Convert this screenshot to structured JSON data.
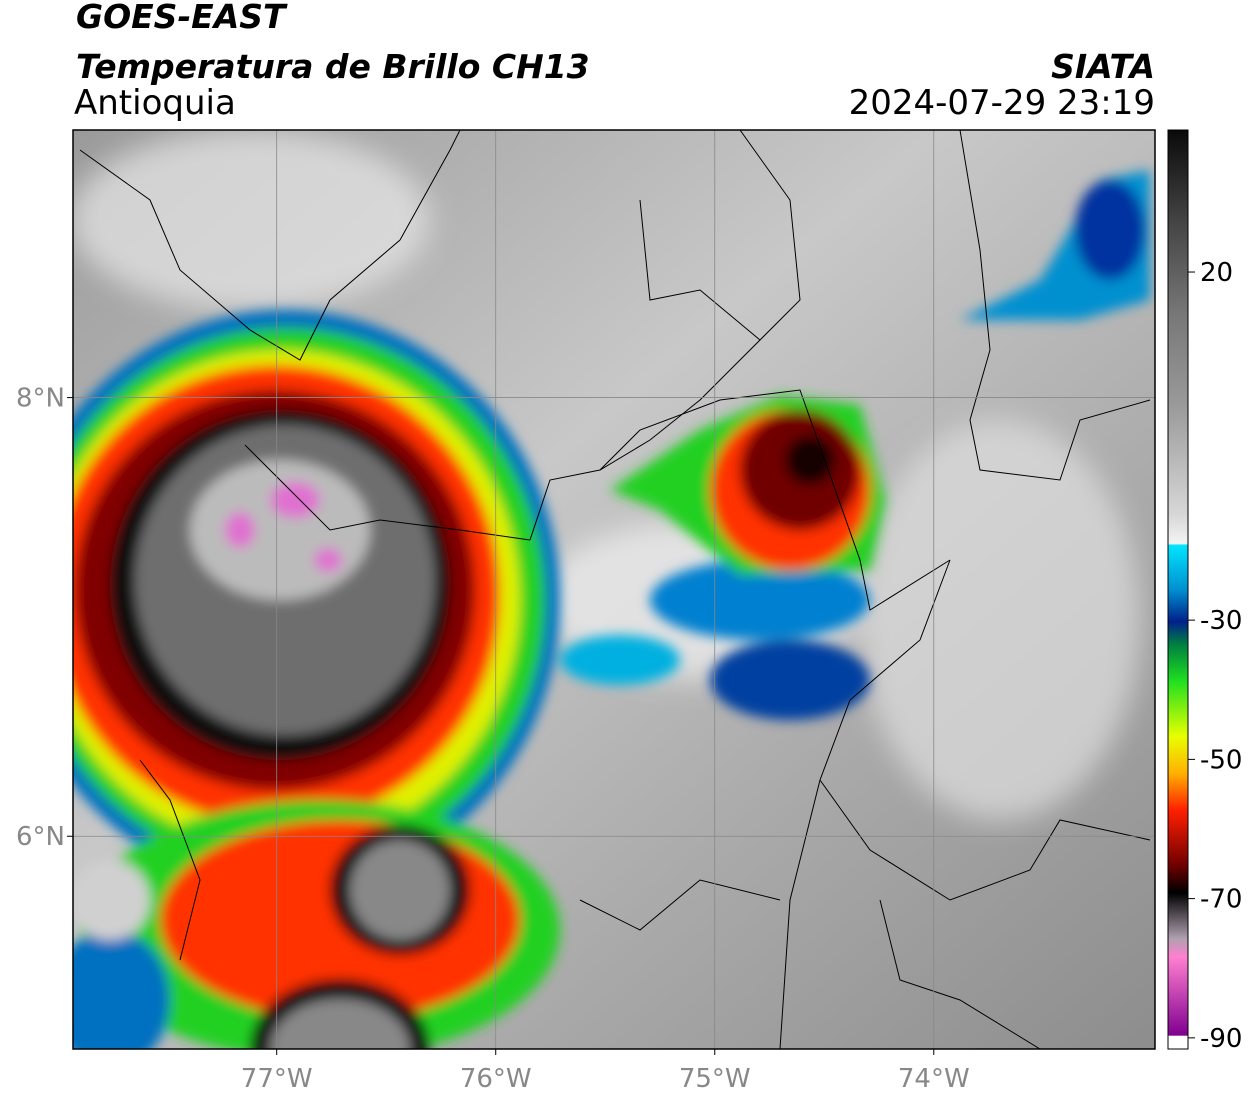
{
  "header": {
    "title": "GOES-EAST",
    "subtitle": "Temperatura de Brillo CH13",
    "region": "Antioquia",
    "source": "SIATA",
    "timestamp": "2024-07-29 23:19"
  },
  "map": {
    "xlim": [
      -77.93,
      -72.99
    ],
    "ylim": [
      5.03,
      9.22
    ],
    "xticks": [
      {
        "value": -77,
        "label": "77°W"
      },
      {
        "value": -76,
        "label": "76°W"
      },
      {
        "value": -75,
        "label": "75°W"
      },
      {
        "value": -74,
        "label": "74°W"
      }
    ],
    "yticks": [
      {
        "value": 8,
        "label": "8°N"
      },
      {
        "value": 6,
        "label": "6°N"
      }
    ]
  },
  "colorbar": {
    "lim": [
      -91.6,
      40.4
    ],
    "ticks": [
      20,
      -30,
      -50,
      -70,
      -90
    ]
  }
}
